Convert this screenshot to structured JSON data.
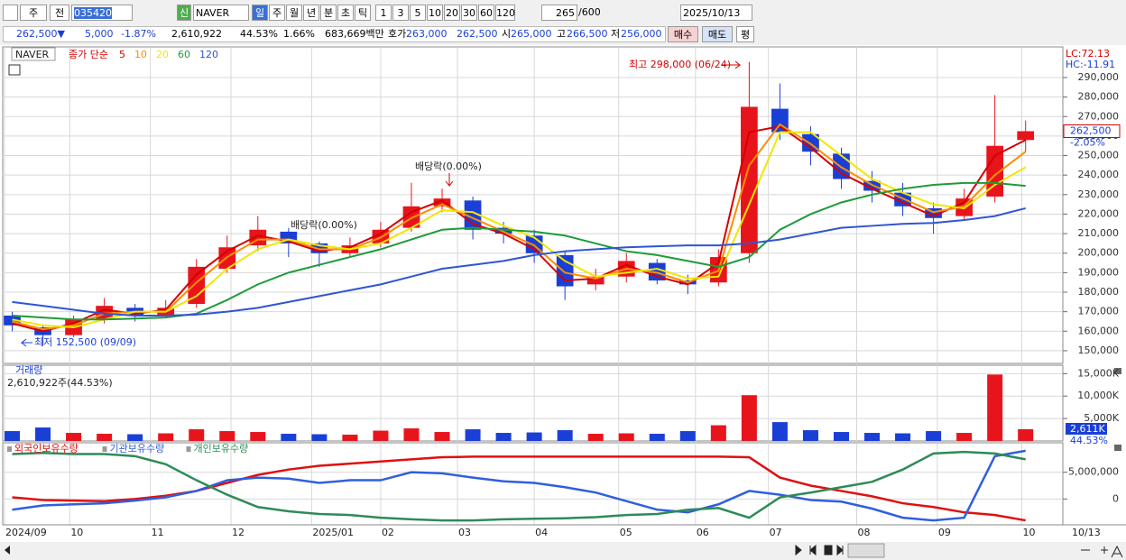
{
  "toolbar": {
    "period_type": "주",
    "compare": "전",
    "code": "035420",
    "new_badge": "신",
    "name": "NAVER",
    "periods": [
      "일",
      "주",
      "월",
      "년",
      "분",
      "초",
      "틱"
    ],
    "intervals": [
      "1",
      "3",
      "5",
      "10",
      "20",
      "30",
      "60",
      "120"
    ],
    "count": "265",
    "max_count": "/600",
    "date": "2025/10/13"
  },
  "quote": {
    "price": "262,500▼",
    "change": "5,000",
    "change_pct": "-1.87%",
    "volume": "2,610,922",
    "volume_ratio": "44.53%",
    "turnover": "1.66%",
    "amount": "683,669백만",
    "ask_label": "호가",
    "ask": "263,000",
    "bid": "262,500",
    "open_label": "시",
    "open": "265,000",
    "high_label": "고",
    "high": "266,500",
    "low_label": "저",
    "low": "256,000",
    "buy": "매수",
    "sell": "매도",
    "avg": "평"
  },
  "chart_data": [
    {
      "type": "candlestick",
      "title": "NAVER",
      "legend_title": "종가 단순",
      "lc": "LC:72.13",
      "hc": "HC:-11.91",
      "last_price_label": "262,500",
      "last_change": "-2.05%",
      "x_end_label": "10/13",
      "up_color": "#e8141c",
      "down_color": "#1a3fd6",
      "x": [
        2,
        10,
        18,
        26,
        34,
        42,
        50,
        58,
        66,
        74,
        82,
        90,
        98,
        106,
        114,
        122,
        130,
        138,
        146,
        154,
        162,
        170,
        178,
        186,
        194,
        202,
        210,
        218,
        226,
        234,
        242,
        250,
        258,
        266
      ],
      "xlim": [
        0,
        275
      ],
      "xticks": [
        {
          "value": 0,
          "label": "2024/09"
        },
        {
          "value": 17,
          "label": "10"
        },
        {
          "value": 38,
          "label": "11"
        },
        {
          "value": 59,
          "label": "12"
        },
        {
          "value": 80,
          "label": "2025/01"
        },
        {
          "value": 98,
          "label": "02"
        },
        {
          "value": 118,
          "label": "03"
        },
        {
          "value": 138,
          "label": "04"
        },
        {
          "value": 160,
          "label": "05"
        },
        {
          "value": 180,
          "label": "06"
        },
        {
          "value": 199,
          "label": "07"
        },
        {
          "value": 222,
          "label": "08"
        },
        {
          "value": 243,
          "label": "09"
        },
        {
          "value": 265,
          "label": "10"
        }
      ],
      "candles": {
        "open": [
          168000,
          162000,
          158000,
          166000,
          172000,
          168000,
          174000,
          192000,
          204000,
          211000,
          205000,
          200000,
          205000,
          213000,
          224000,
          227000,
          213000,
          209000,
          199000,
          184000,
          188000,
          195000,
          186000,
          185000,
          200000,
          274000,
          261000,
          251000,
          237000,
          231000,
          223000,
          219000,
          229000,
          258000
        ],
        "high": [
          170000,
          163000,
          168000,
          177000,
          174000,
          176000,
          197000,
          209000,
          219000,
          213000,
          206000,
          208000,
          216000,
          236000,
          233000,
          229000,
          216000,
          212000,
          201000,
          192000,
          200000,
          197000,
          189000,
          202000,
          298000,
          287000,
          265000,
          254000,
          242000,
          236000,
          226000,
          233000,
          281000,
          268000
        ],
        "low": [
          160000,
          152500,
          157000,
          164000,
          165000,
          167000,
          172000,
          190000,
          201000,
          198000,
          193000,
          198000,
          203000,
          211000,
          221000,
          207000,
          205000,
          195000,
          176000,
          181000,
          185000,
          184000,
          179000,
          183000,
          195000,
          258000,
          245000,
          233000,
          226000,
          219000,
          210000,
          217000,
          226000,
          252000
        ],
        "close": [
          163000,
          158000,
          166000,
          173000,
          168000,
          172000,
          193000,
          203000,
          212000,
          205000,
          200000,
          204000,
          212000,
          224000,
          228000,
          212000,
          210000,
          200000,
          183000,
          188000,
          196000,
          186000,
          184000,
          198000,
          275000,
          262000,
          252000,
          238000,
          232000,
          224000,
          218000,
          228000,
          255000,
          262500
        ]
      },
      "series": [
        {
          "name": "5",
          "color": "#d40000",
          "values": [
            164000,
            160000,
            164000,
            171000,
            169000,
            171000,
            189000,
            201000,
            209000,
            206000,
            201000,
            203000,
            210000,
            221000,
            227000,
            215000,
            210000,
            202000,
            186000,
            187000,
            194000,
            188000,
            184000,
            195000,
            262000,
            265000,
            254000,
            241000,
            233000,
            226000,
            219000,
            226000,
            250000,
            258000
          ]
        },
        {
          "name": "10",
          "color": "#ff8c00",
          "values": [
            165000,
            161000,
            163000,
            169000,
            170000,
            170000,
            185000,
            198000,
            207000,
            207000,
            202000,
            202000,
            208000,
            218000,
            225000,
            218000,
            211000,
            204000,
            190000,
            187000,
            192000,
            190000,
            185000,
            191000,
            245000,
            266000,
            256000,
            244000,
            235000,
            228000,
            221000,
            224000,
            240000,
            252000
          ]
        },
        {
          "name": "20",
          "color": "#f2e600",
          "values": [
            166000,
            163000,
            162000,
            166000,
            170000,
            170000,
            178000,
            192000,
            202000,
            207000,
            204000,
            202000,
            205000,
            213000,
            222000,
            221000,
            214000,
            208000,
            196000,
            188000,
            190000,
            192000,
            187000,
            188000,
            225000,
            262000,
            262000,
            250000,
            238000,
            231000,
            225000,
            223000,
            235000,
            244000
          ]
        },
        {
          "name": "60",
          "color": "#1f9a3a",
          "values": [
            168000,
            167000,
            166000,
            166000,
            166500,
            167000,
            169000,
            176000,
            184000,
            190000,
            194000,
            198000,
            202000,
            207000,
            212000,
            213000,
            212000,
            211000,
            209000,
            205000,
            201000,
            199000,
            196000,
            193000,
            198000,
            212000,
            220000,
            226000,
            230000,
            233000,
            235000,
            236000,
            236000,
            234500
          ]
        },
        {
          "name": "120",
          "color": "#2f55d4",
          "values": [
            175000,
            173000,
            171000,
            169000,
            168000,
            168000,
            168500,
            170000,
            172000,
            175000,
            178000,
            181000,
            184000,
            188000,
            192000,
            194000,
            196000,
            199000,
            201000,
            202000,
            203000,
            203500,
            204000,
            204000,
            205000,
            207000,
            210000,
            213000,
            214000,
            215000,
            215500,
            217000,
            219000,
            223000
          ]
        }
      ],
      "ylim": [
        143500,
        305700
      ],
      "yticks": [
        {
          "value": 150000,
          "label": "150,000"
        },
        {
          "value": 160000,
          "label": "160,000"
        },
        {
          "value": 170000,
          "label": "170,000"
        },
        {
          "value": 180000,
          "label": "180,000"
        },
        {
          "value": 190000,
          "label": "190,000"
        },
        {
          "value": 200000,
          "label": "200,000"
        },
        {
          "value": 210000,
          "label": "210,000"
        },
        {
          "value": 220000,
          "label": "220,000"
        },
        {
          "value": 230000,
          "label": "230,000"
        },
        {
          "value": 240000,
          "label": "240,000"
        },
        {
          "value": 250000,
          "label": "250,000"
        },
        {
          "value": 260000,
          "label": "260,000"
        },
        {
          "value": 270000,
          "label": "270,000"
        },
        {
          "value": 280000,
          "label": "280,000"
        },
        {
          "value": 290000,
          "label": "290,000"
        }
      ],
      "grid": true,
      "annotations": [
        "최고 298,000 (06/24)",
        "최저 152,500 (09/09)",
        "배당락(0.00%)",
        "배당락(0.00%)"
      ]
    },
    {
      "type": "bar",
      "title": "거래량",
      "subtitle": "2,610,922주(44.53%)",
      "last_label": "2,611K",
      "last_ratio": "44.53%",
      "values": [
        2200,
        3000,
        1800,
        1600,
        1500,
        1700,
        2600,
        2200,
        2000,
        1600,
        1500,
        1400,
        2300,
        2800,
        2000,
        2600,
        1800,
        1900,
        2400,
        1600,
        1700,
        1600,
        2200,
        3500,
        10200,
        4200,
        2400,
        2000,
        1800,
        1700,
        2200,
        1800,
        14800,
        2611
      ],
      "ylim": [
        0,
        16875
      ],
      "yticks": [
        {
          "value": 5000,
          "label": "5,000K"
        },
        {
          "value": 10000,
          "label": "10,000K"
        },
        {
          "value": 15000,
          "label": "15,000K"
        }
      ],
      "grid": true
    },
    {
      "type": "line",
      "grid": true,
      "series": [
        {
          "name": "외국인보유수량",
          "color": "#e01010",
          "values": [
            300000,
            -200000,
            -300000,
            -400000,
            0,
            600000,
            1500000,
            3000000,
            4500000,
            5500000,
            6200000,
            6600000,
            7000000,
            7400000,
            7800000,
            7900000,
            7900000,
            7900000,
            7900000,
            7900000,
            7900000,
            7900000,
            7900000,
            7900000,
            7800000,
            4000000,
            2500000,
            1500000,
            500000,
            -800000,
            -1500000,
            -2500000,
            -3000000,
            -4000000
          ]
        },
        {
          "name": "기관보유수량",
          "color": "#2f5fe0",
          "values": [
            -2000000,
            -1200000,
            -1000000,
            -800000,
            -300000,
            300000,
            1500000,
            3500000,
            4000000,
            3800000,
            3000000,
            3500000,
            3500000,
            5000000,
            4800000,
            4000000,
            3300000,
            3000000,
            2200000,
            1200000,
            -400000,
            -2000000,
            -2500000,
            -1000000,
            1500000,
            800000,
            -200000,
            -500000,
            -1800000,
            -3500000,
            -4000000,
            -3500000,
            8000000,
            9000000
          ]
        },
        {
          "name": "개인보유수량",
          "color": "#2e8b57",
          "values": [
            8400000,
            8600000,
            8400000,
            8400000,
            8000000,
            6500000,
            3500000,
            800000,
            -1500000,
            -2300000,
            -2800000,
            -3000000,
            -3500000,
            -3800000,
            -4000000,
            -4000000,
            -3800000,
            -3700000,
            -3600000,
            -3400000,
            -3000000,
            -2800000,
            -2000000,
            -1700000,
            -3500000,
            300000,
            1200000,
            2200000,
            3200000,
            5500000,
            8500000,
            8800000,
            8500000,
            7400000
          ]
        }
      ],
      "ylim": [
        -4830000,
        10500000
      ],
      "yticks": [
        0,
        {
          "value": 5000000,
          "label": "5,000,000"
        }
      ]
    }
  ]
}
